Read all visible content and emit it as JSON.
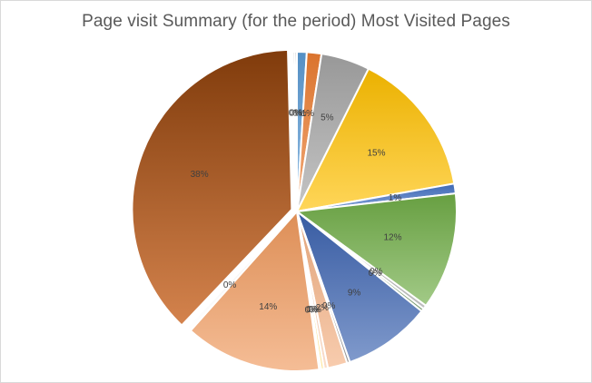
{
  "chart_data": {
    "type": "pie",
    "title": "Page visit Summary (for the period) Most Visited Pages",
    "legend": "none",
    "slices": [
      {
        "value": 1.0,
        "label": "1%",
        "color": "#5b9bd5"
      },
      {
        "value": 1.5,
        "label": "1%",
        "color": "#ed7d31"
      },
      {
        "value": 5.0,
        "label": "5%",
        "color": "#a5a5a5"
      },
      {
        "value": 15.0,
        "label": "15%",
        "color": "#ffc000"
      },
      {
        "value": 1.0,
        "label": "1%",
        "color": "#4472c4"
      },
      {
        "value": 12.0,
        "label": "12%",
        "color": "#70ad47"
      },
      {
        "value": 0.4,
        "label": "0%",
        "color": "#9e9e9e"
      },
      {
        "value": 0.3,
        "label": "0%",
        "color": "#3a6a2c"
      },
      {
        "value": 9.0,
        "label": "9%",
        "color": "#3c63b0"
      },
      {
        "value": 0.3,
        "label": "0%",
        "color": "#636363"
      },
      {
        "value": 2.0,
        "label": "2%",
        "color": "#f4b183"
      },
      {
        "value": 0.4,
        "label": "0%",
        "color": "#f8cbad"
      },
      {
        "value": 0.3,
        "label": "0%",
        "color": "#ffd966"
      },
      {
        "value": 0.2,
        "label": "0%",
        "color": "#a9c6e8"
      },
      {
        "value": 14.0,
        "label": "14%",
        "color": "#f09a5e"
      },
      {
        "value": 0.5,
        "label": "0%",
        "color": "#ffffff"
      },
      {
        "value": 38.0,
        "label": "38%",
        "color": "#c55a11"
      },
      {
        "value": 0.2,
        "label": "0%",
        "color": "#7f7f7f"
      },
      {
        "value": 0.2,
        "label": "0%",
        "color": "#636363"
      }
    ]
  }
}
